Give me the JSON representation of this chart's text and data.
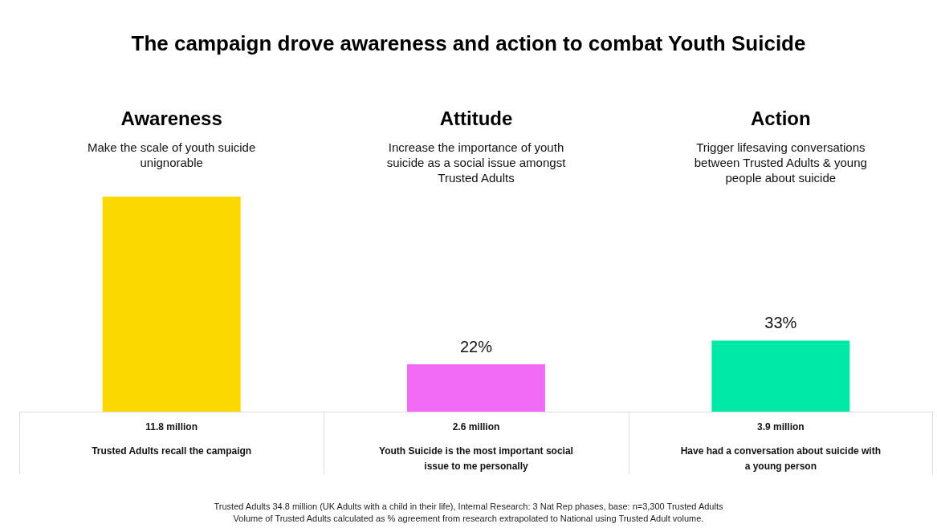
{
  "chart_data": {
    "type": "bar",
    "title": "The campaign drove awareness and action to combat Youth Suicide",
    "categories": [
      "Awareness",
      "Attitude",
      "Action"
    ],
    "values": [
      11.8,
      2.6,
      3.9
    ],
    "colors": [
      "#fad800",
      "#f26bf7",
      "#00e9a6"
    ],
    "value_labels": [
      "11.8 million",
      "2.6 million",
      "3.9 million"
    ],
    "annotations": [
      "Make the scale of youth suicide unignorable",
      "Trusted Adults recall the campaign",
      "Increase the importance of youth suicide as a social issue amongst Trusted Adults",
      "Youth Suicide is the most important social issue to me personally",
      "Trigger lifesaving conversations between Trusted Adults & young people about suicide",
      "Have had a conversation about suicide with a young person",
      {
        "text": "22%",
        "x": "Attitude",
        "y": 2.6
      },
      {
        "text": "33%",
        "x": "Action",
        "y": 3.9
      },
      "Trusted Adults 34.8 million (UK Adults with a child in their life), Internal Research: 3 Nat Rep phases, base: n=3,300 Trusted Adults",
      "Volume of Trusted Adults calculated as % agreement from research extrapolated to National using Trusted Adult volume."
    ],
    "grid": false
  }
}
